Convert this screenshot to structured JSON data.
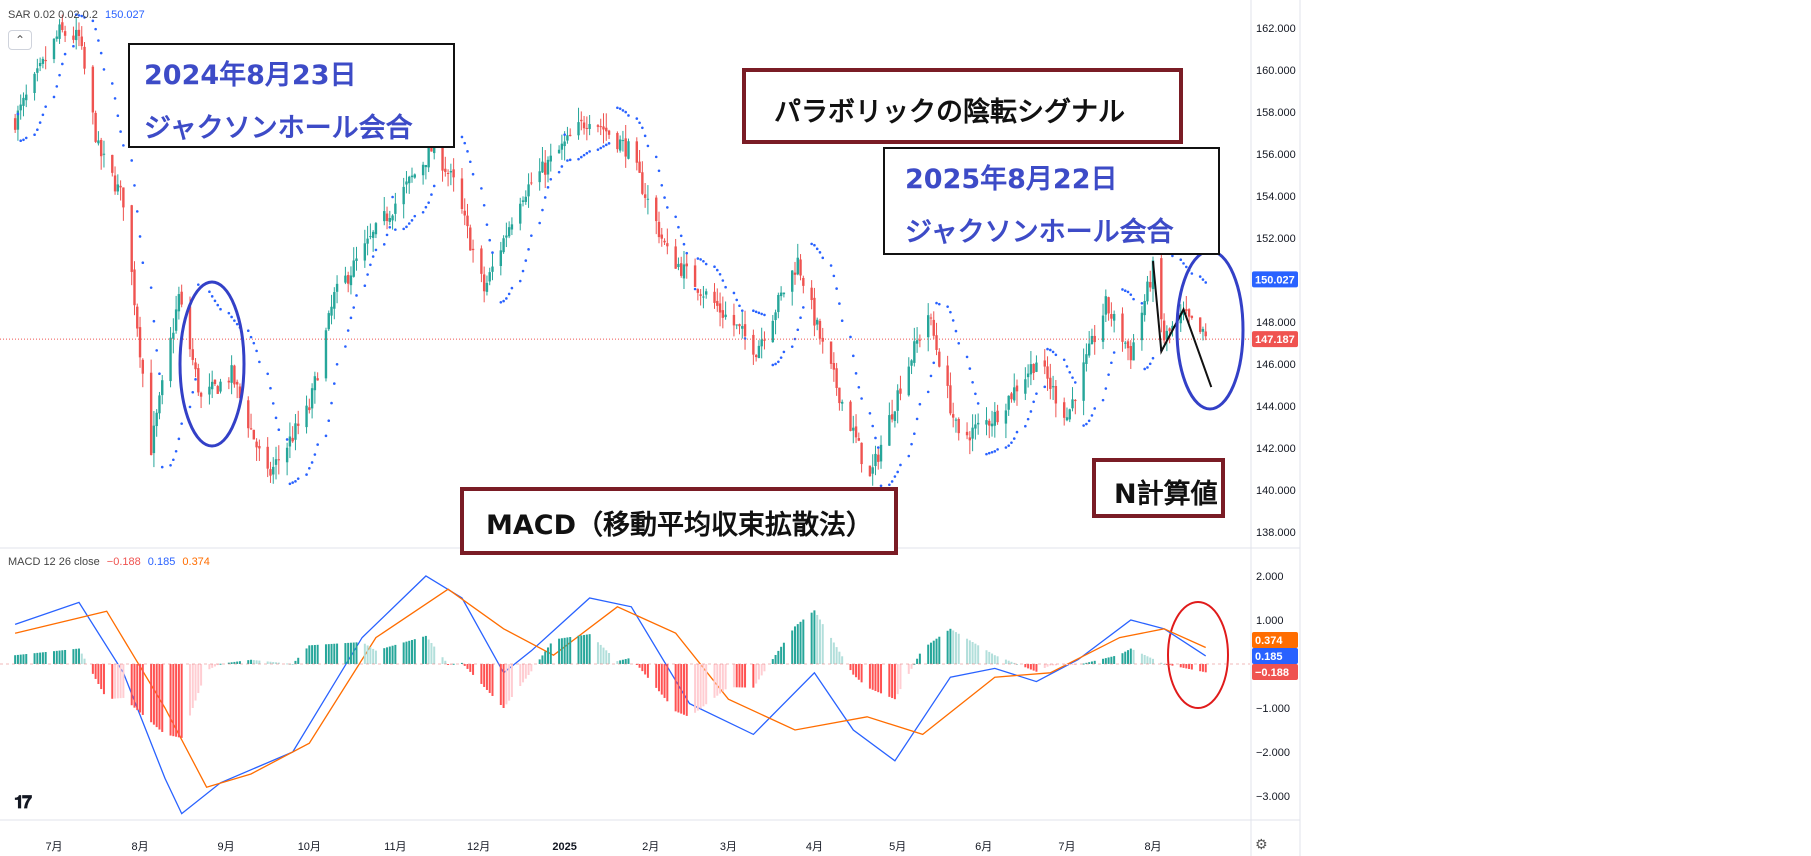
{
  "colors": {
    "up": "#26a69a",
    "down": "#ef5350",
    "sar": "#2962ff",
    "macd_line": "#2962ff",
    "signal_line": "#ff6d00",
    "hist_up_strong": "#26a69a",
    "hist_up_weak": "#b2dfdb",
    "hist_down_strong": "#ff5252",
    "hist_down_weak": "#ffcdd2",
    "annotation_blue": "#3d4bc7",
    "annotation_maroon": "#7a1c25",
    "circle_blue": "#3340c7",
    "circle_red": "#e01b1b"
  },
  "price_legend": {
    "indicator": "SAR 0.02 0.02 0.2",
    "value": "150.027"
  },
  "macd_legend": {
    "indicator": "MACD 12 26 close",
    "hist": "−0.188",
    "macd": "0.185",
    "signal": "0.374"
  },
  "annotations": {
    "jh2024_date": "2024年8月23日",
    "jh2024_event": "ジャクソンホール会合",
    "parabolic": "パラボリックの陰転シグナル",
    "jh2025_date": "2025年8月22日",
    "jh2025_event": "ジャクソンホール会合",
    "n_value": "N計算値",
    "macd_title": "MACD（移動平均収束拡散法）"
  },
  "chart_data": [
    {
      "type": "candlestick",
      "title": "",
      "xlabel": "",
      "ylabel": "",
      "ylim": [
        137.5,
        163.0
      ],
      "y_ticks": [
        "162.000",
        "160.000",
        "158.000",
        "156.000",
        "154.000",
        "152.000",
        "150.000",
        "148.000",
        "146.000",
        "144.000",
        "142.000",
        "140.000",
        "138.000"
      ],
      "x_tick_labels": [
        "7月",
        "8月",
        "9月",
        "10月",
        "11月",
        "12月",
        "2025",
        "2月",
        "3月",
        "4月",
        "5月",
        "6月",
        "7月",
        "8月"
      ],
      "current_price": "147.187",
      "sar_label": "150.027",
      "close_anchors": [
        [
          "2024-06-17",
          157.6
        ],
        [
          "2024-07-03",
          161.8
        ],
        [
          "2024-07-10",
          161.5
        ],
        [
          "2024-07-17",
          156.2
        ],
        [
          "2024-07-26",
          153.8
        ],
        [
          "2024-08-05",
          142.0
        ],
        [
          "2024-08-15",
          149.2
        ],
        [
          "2024-08-23",
          144.3
        ],
        [
          "2024-09-03",
          145.5
        ],
        [
          "2024-09-16",
          140.6
        ],
        [
          "2024-10-01",
          143.9
        ],
        [
          "2024-10-10",
          149.2
        ],
        [
          "2024-10-25",
          152.3
        ],
        [
          "2024-11-15",
          156.4
        ],
        [
          "2024-11-22",
          154.6
        ],
        [
          "2024-12-03",
          149.5
        ],
        [
          "2024-12-16",
          154.0
        ],
        [
          "2025-01-10",
          157.8
        ],
        [
          "2025-01-24",
          156.2
        ],
        [
          "2025-02-07",
          151.3
        ],
        [
          "2025-02-21",
          149.3
        ],
        [
          "2025-03-11",
          146.7
        ],
        [
          "2025-03-26",
          150.9
        ],
        [
          "2025-04-04",
          146.8
        ],
        [
          "2025-04-21",
          140.5
        ],
        [
          "2025-05-02",
          145.0
        ],
        [
          "2025-05-12",
          148.4
        ],
        [
          "2025-05-23",
          142.4
        ],
        [
          "2025-06-05",
          143.5
        ],
        [
          "2025-06-20",
          146.2
        ],
        [
          "2025-07-01",
          143.5
        ],
        [
          "2025-07-15",
          148.8
        ],
        [
          "2025-07-24",
          146.5
        ],
        [
          "2025-08-01",
          150.5
        ],
        [
          "2025-08-05",
          147.2
        ],
        [
          "2025-08-12",
          148.3
        ],
        [
          "2025-08-20",
          147.2
        ]
      ]
    },
    {
      "type": "line",
      "title": "",
      "ylim": [
        -3.6,
        2.4
      ],
      "y_ticks": [
        "2.000",
        "1.000",
        "−1.000",
        "−2.000",
        "−3.000"
      ],
      "labels": {
        "signal": "0.374",
        "macd": "0.185",
        "hist": "−0.188"
      },
      "series": [
        {
          "name": "MACD",
          "points": [
            [
              "2024-06-17",
              0.9
            ],
            [
              "2024-07-10",
              1.4
            ],
            [
              "2024-07-26",
              -0.2
            ],
            [
              "2024-08-10",
              -2.6
            ],
            [
              "2024-08-16",
              -3.4
            ],
            [
              "2024-08-30",
              -2.7
            ],
            [
              "2024-09-25",
              -2.0
            ],
            [
              "2024-10-20",
              0.6
            ],
            [
              "2024-11-12",
              2.0
            ],
            [
              "2024-11-25",
              1.5
            ],
            [
              "2024-12-10",
              -0.2
            ],
            [
              "2024-12-20",
              0.3
            ],
            [
              "2025-01-10",
              1.5
            ],
            [
              "2025-01-25",
              1.3
            ],
            [
              "2025-02-15",
              -0.9
            ],
            [
              "2025-03-10",
              -1.6
            ],
            [
              "2025-04-01",
              -0.2
            ],
            [
              "2025-04-15",
              -1.5
            ],
            [
              "2025-04-30",
              -2.2
            ],
            [
              "2025-05-20",
              -0.3
            ],
            [
              "2025-06-05",
              -0.1
            ],
            [
              "2025-06-20",
              -0.4
            ],
            [
              "2025-07-05",
              0.1
            ],
            [
              "2025-07-24",
              1.0
            ],
            [
              "2025-08-05",
              0.8
            ],
            [
              "2025-08-20",
              0.185
            ]
          ]
        },
        {
          "name": "Signal",
          "points": [
            [
              "2024-06-17",
              0.7
            ],
            [
              "2024-07-20",
              1.2
            ],
            [
              "2024-08-10",
              -1.0
            ],
            [
              "2024-08-25",
              -2.8
            ],
            [
              "2024-09-10",
              -2.5
            ],
            [
              "2024-10-01",
              -1.8
            ],
            [
              "2024-10-25",
              0.6
            ],
            [
              "2024-11-20",
              1.7
            ],
            [
              "2024-12-10",
              0.8
            ],
            [
              "2024-12-28",
              0.2
            ],
            [
              "2025-01-20",
              1.3
            ],
            [
              "2025-02-10",
              0.7
            ],
            [
              "2025-03-01",
              -0.8
            ],
            [
              "2025-03-25",
              -1.5
            ],
            [
              "2025-04-20",
              -1.2
            ],
            [
              "2025-05-10",
              -1.6
            ],
            [
              "2025-06-05",
              -0.3
            ],
            [
              "2025-06-25",
              -0.2
            ],
            [
              "2025-07-20",
              0.6
            ],
            [
              "2025-08-05",
              0.8
            ],
            [
              "2025-08-20",
              0.374
            ]
          ]
        }
      ]
    }
  ]
}
